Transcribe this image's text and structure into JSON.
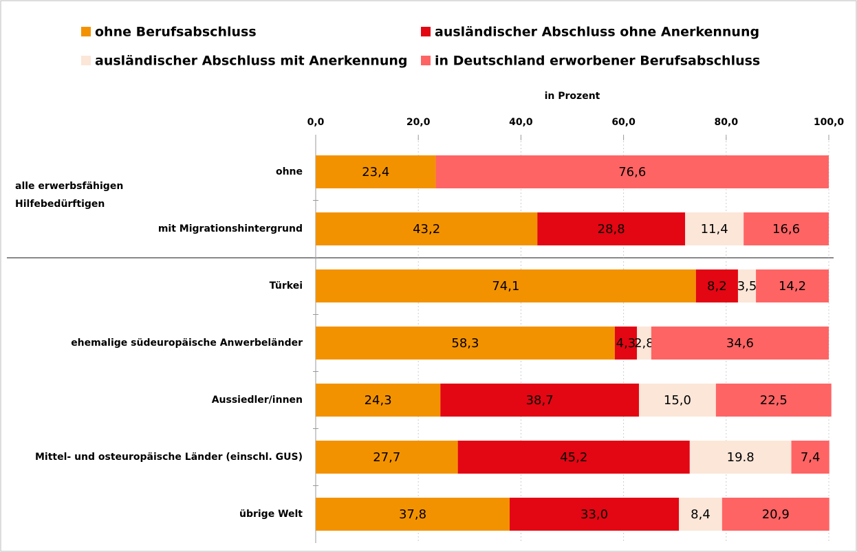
{
  "chart_data": {
    "type": "stacked-bar-horizontal",
    "axis_label": "in Prozent",
    "group_label": "alle erwerbsfähigen Hilfebedürftigen",
    "categories": [
      "ohne",
      "mit Migrationshintergrund",
      "Türkei",
      "ehemalige südeuropäische Anwerbeländer",
      "Aussiedler/innen",
      "Mittel- und osteuropäische Länder (einschl. GUS)",
      "übrige Welt"
    ],
    "series": [
      {
        "name": "ohne Berufsabschluss",
        "color": "#f39200",
        "values": [
          23.4,
          43.2,
          74.1,
          58.3,
          24.3,
          27.7,
          37.8
        ],
        "value_labels": [
          "23,4",
          "43,2",
          "74,1",
          "58,3",
          "24,3",
          "27,7",
          "37,8"
        ]
      },
      {
        "name": "ausländischer Abschluss ohne Anerkennung",
        "color": "#e30613",
        "values": [
          null,
          28.8,
          8.2,
          4.3,
          38.7,
          45.2,
          33.0
        ],
        "value_labels": [
          null,
          "28,8",
          "8,2",
          "4,3",
          "38,7",
          "45,2",
          "33,0"
        ]
      },
      {
        "name": "ausländischer Abschluss mit Anerkennung",
        "color": "#fbe6d8",
        "values": [
          null,
          11.4,
          3.5,
          2.8,
          15.0,
          19.8,
          8.4
        ],
        "value_labels": [
          null,
          "11,4",
          "3,5",
          "2,8",
          "15,0",
          "19.8",
          "8,4"
        ]
      },
      {
        "name": "in Deutschland erworbener Berufsabschluss",
        "color": "#ff6464",
        "values": [
          76.6,
          16.6,
          14.2,
          34.6,
          22.5,
          7.4,
          20.9
        ],
        "value_labels": [
          "76,6",
          "16,6",
          "14,2",
          "34,6",
          "22,5",
          "7,4",
          "20,9"
        ]
      }
    ],
    "xlim": [
      0,
      100
    ],
    "xticks": [
      {
        "value": 0,
        "label": "0,0"
      },
      {
        "value": 20,
        "label": "20,0"
      },
      {
        "value": 40,
        "label": "40,0"
      },
      {
        "value": 60,
        "label": "60,0"
      },
      {
        "value": 80,
        "label": "80,0"
      },
      {
        "value": 100,
        "label": "100,0"
      }
    ],
    "grid": true
  }
}
